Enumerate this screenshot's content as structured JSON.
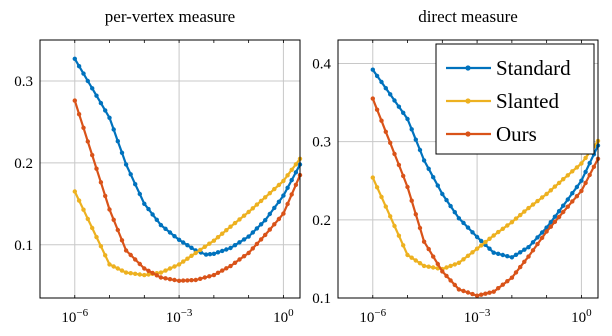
{
  "chart_data": [
    {
      "type": "line",
      "title": "per-vertex measure",
      "x_scale": "log",
      "xlim": [
        "1e-7",
        "3"
      ],
      "ylim": [
        0.035,
        0.35
      ],
      "x_ticks": [
        {
          "value": 1e-06,
          "label": "10^-6"
        },
        {
          "value": 0.001,
          "label": "10^-3"
        },
        {
          "value": 1,
          "label": "10^0"
        }
      ],
      "y_ticks": [
        {
          "value": 0.1,
          "label": "0.1"
        },
        {
          "value": 0.2,
          "label": "0.2"
        },
        {
          "value": 0.3,
          "label": "0.3"
        }
      ],
      "grid": true,
      "series": [
        {
          "name": "Standard",
          "color": "#0072bd",
          "x": [
            1e-06,
            1e-05,
            3e-05,
            0.0001,
            0.0003,
            0.001,
            0.003,
            0.006,
            0.01,
            0.03,
            0.1,
            0.3,
            1,
            3
          ],
          "y": [
            0.327,
            0.255,
            0.198,
            0.15,
            0.124,
            0.106,
            0.093,
            0.088,
            0.089,
            0.096,
            0.11,
            0.13,
            0.16,
            0.198
          ]
        },
        {
          "name": "Slanted",
          "color": "#edb120",
          "x": [
            1e-06,
            1e-05,
            3e-05,
            0.0001,
            0.0003,
            0.001,
            0.003,
            0.01,
            0.03,
            0.1,
            0.3,
            1,
            3
          ],
          "y": [
            0.165,
            0.076,
            0.066,
            0.063,
            0.066,
            0.076,
            0.09,
            0.105,
            0.122,
            0.14,
            0.158,
            0.178,
            0.205
          ]
        },
        {
          "name": "Ours",
          "color": "#d95319",
          "x": [
            1e-06,
            1e-05,
            3e-05,
            0.0001,
            0.0003,
            0.001,
            0.003,
            0.01,
            0.03,
            0.1,
            0.3,
            1,
            3
          ],
          "y": [
            0.276,
            0.143,
            0.093,
            0.071,
            0.06,
            0.056,
            0.057,
            0.063,
            0.074,
            0.09,
            0.112,
            0.138,
            0.185
          ]
        }
      ]
    },
    {
      "type": "line",
      "title": "direct measure",
      "x_scale": "log",
      "xlim": [
        "1e-7",
        "3"
      ],
      "ylim": [
        0.1,
        0.43
      ],
      "x_ticks": [
        {
          "value": 1e-06,
          "label": "10^-6"
        },
        {
          "value": 0.001,
          "label": "10^-3"
        },
        {
          "value": 1,
          "label": "10^0"
        }
      ],
      "y_ticks": [
        {
          "value": 0.1,
          "label": "0.1"
        },
        {
          "value": 0.2,
          "label": "0.2"
        },
        {
          "value": 0.3,
          "label": "0.3"
        },
        {
          "value": 0.4,
          "label": "0.4"
        }
      ],
      "grid": true,
      "legend_position": "top-right",
      "series": [
        {
          "name": "Standard",
          "color": "#0072bd",
          "x": [
            1e-06,
            1e-05,
            3e-05,
            0.0001,
            0.0003,
            0.001,
            0.003,
            0.01,
            0.03,
            0.1,
            0.3,
            1,
            3
          ],
          "y": [
            0.392,
            0.329,
            0.276,
            0.233,
            0.202,
            0.178,
            0.158,
            0.152,
            0.165,
            0.19,
            0.218,
            0.25,
            0.295
          ]
        },
        {
          "name": "Slanted",
          "color": "#edb120",
          "x": [
            1e-06,
            1e-05,
            3e-05,
            0.0001,
            0.0003,
            0.001,
            0.003,
            0.01,
            0.03,
            0.1,
            0.3,
            1,
            3
          ],
          "y": [
            0.254,
            0.155,
            0.141,
            0.137,
            0.145,
            0.163,
            0.18,
            0.197,
            0.215,
            0.233,
            0.252,
            0.272,
            0.301
          ]
        },
        {
          "name": "Ours",
          "color": "#d95319",
          "x": [
            1e-06,
            1e-05,
            3e-05,
            0.0001,
            0.0003,
            0.001,
            0.003,
            0.01,
            0.03,
            0.1,
            0.3,
            1,
            3
          ],
          "y": [
            0.355,
            0.242,
            0.172,
            0.134,
            0.111,
            0.103,
            0.108,
            0.126,
            0.153,
            0.185,
            0.21,
            0.237,
            0.278
          ]
        }
      ]
    }
  ]
}
